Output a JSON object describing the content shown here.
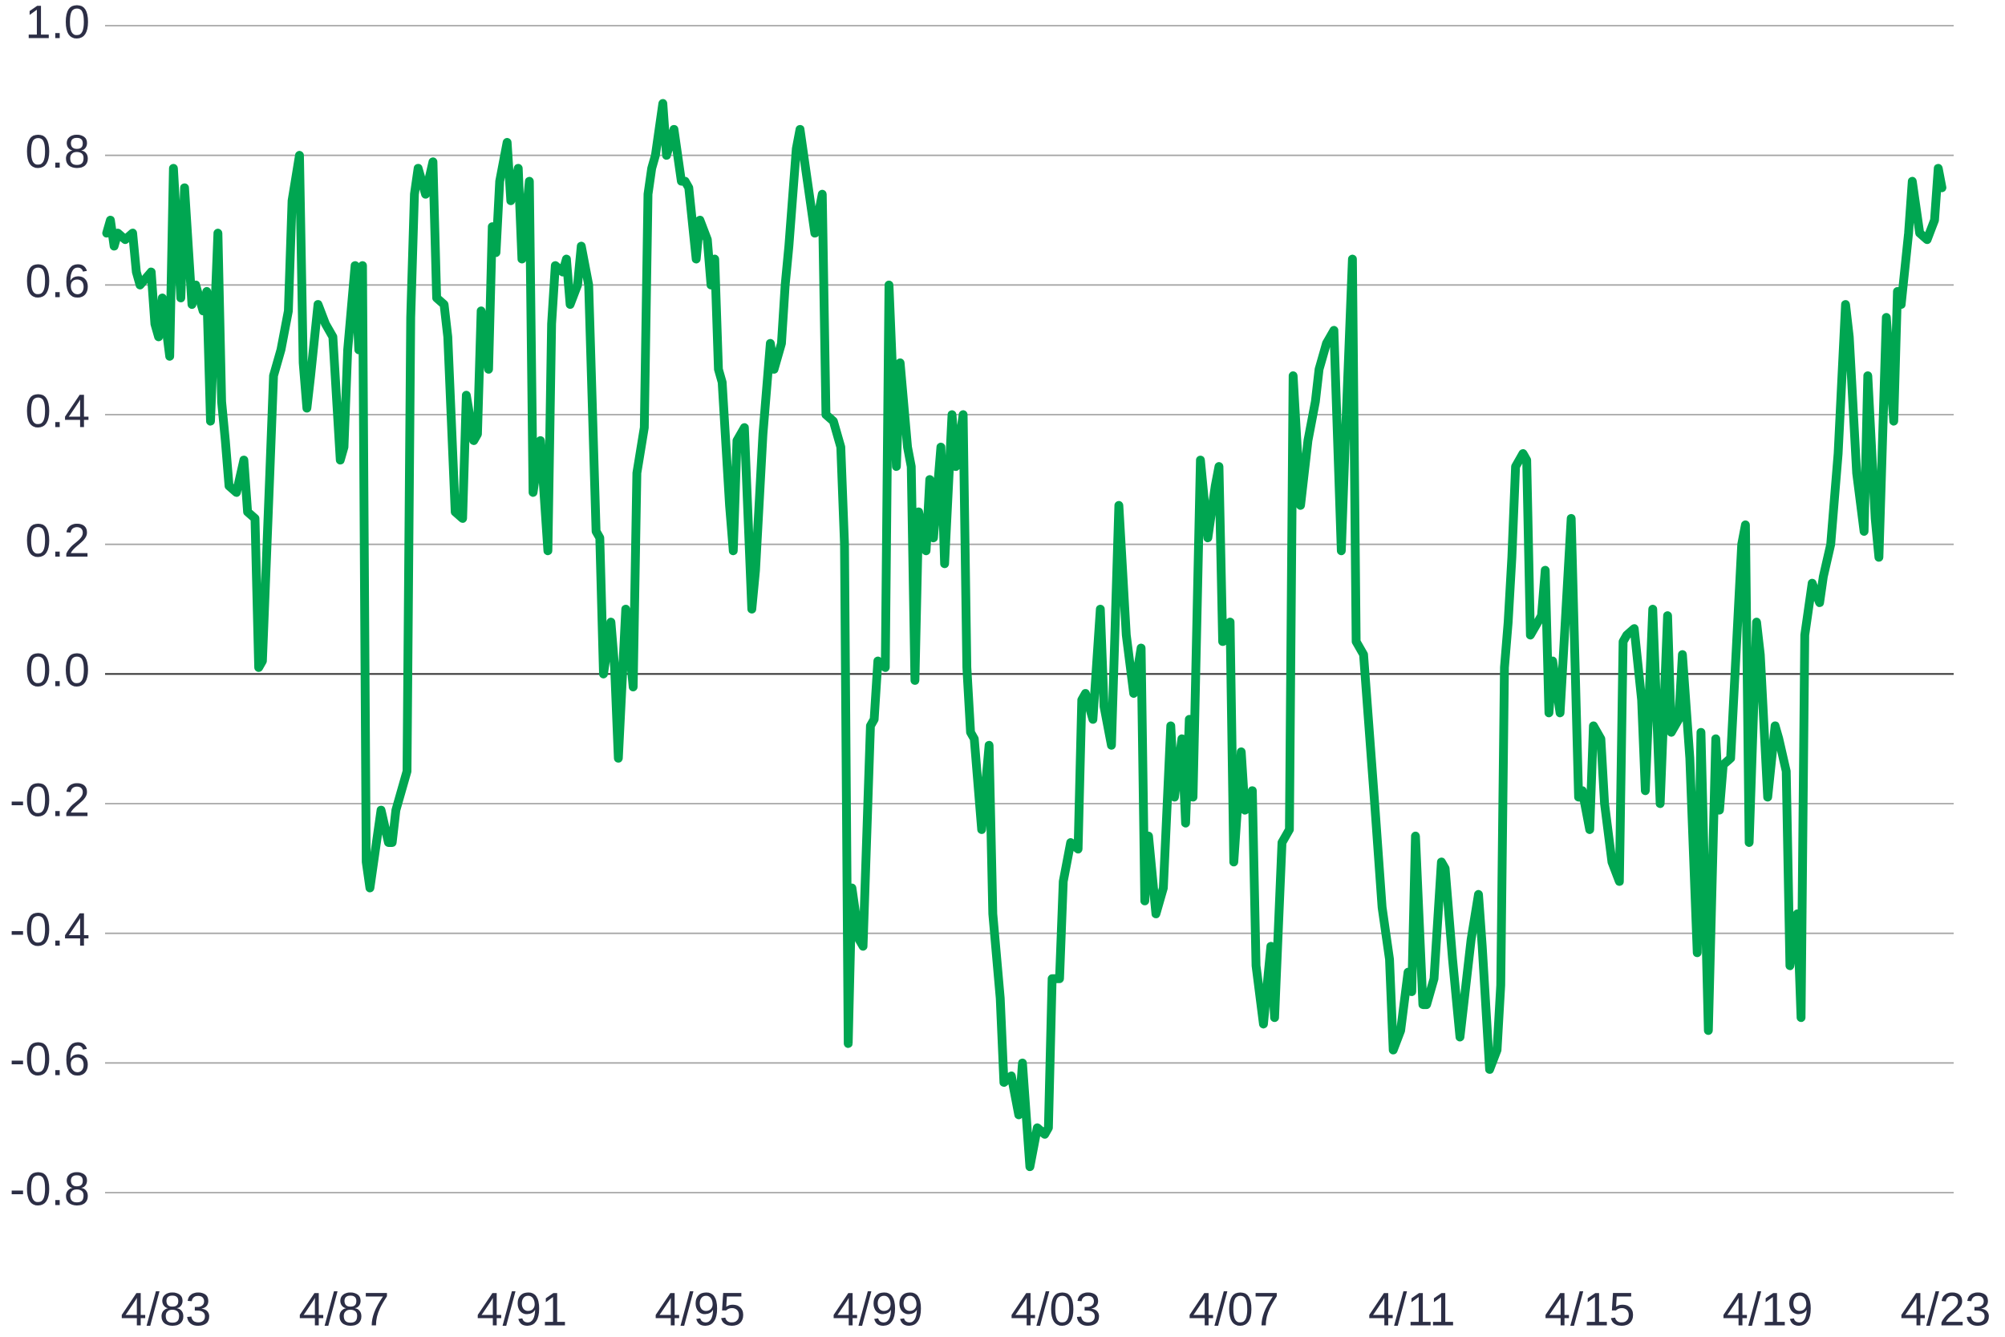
{
  "chart_data": {
    "type": "line",
    "color": "#00a651",
    "ylim": [
      -0.8,
      1.0
    ],
    "yticks": [
      {
        "value": 1.0,
        "label": "1.0"
      },
      0.8,
      0.6,
      0.4,
      0.2,
      {
        "value": 0.0,
        "label": "0.0"
      },
      -0.2,
      -0.4,
      -0.6,
      -0.8
    ],
    "grid": true,
    "xticks": [
      "4/83",
      "4/87",
      "4/91",
      "4/95",
      "4/99",
      "4/03",
      "4/07",
      "4/11",
      "4/15",
      "4/19",
      "4/23"
    ],
    "x": [
      "12/81",
      "1/82",
      "2/82",
      "3/82",
      "5/82",
      "7/82",
      "8/82",
      "9/82",
      "12/82",
      "1/83",
      "2/83",
      "3/83",
      "5/83",
      "6/83",
      "8/83",
      "9/83",
      "11/83",
      "12/83",
      "2/84",
      "3/84",
      "4/84",
      "6/84",
      "7/84",
      "8/84",
      "9/84",
      "11/84",
      "1/85",
      "2/85",
      "4/85",
      "5/85",
      "6/85",
      "8/85",
      "9/85",
      "11/85",
      "1/86",
      "2/86",
      "4/86",
      "5/86",
      "6/86",
      "7/86",
      "9/86",
      "11/86",
      "1/87",
      "3/87",
      "4/87",
      "5/87",
      "7/87",
      "8/87",
      "9/87",
      "10/87",
      "11/87",
      "1/88",
      "2/88",
      "4/88",
      "5/88",
      "6/88",
      "8/88",
      "9/88",
      "10/88",
      "11/88",
      "12/88",
      "2/89",
      "4/89",
      "5/89",
      "7/89",
      "8/89",
      "10/89",
      "12/89",
      "1/90",
      "3/90",
      "4/90",
      "5/90",
      "7/90",
      "8/90",
      "9/90",
      "10/90",
      "12/90",
      "1/91",
      "3/91",
      "4/91",
      "6/91",
      "7/91",
      "9/91",
      "11/91",
      "12/91",
      "1/92",
      "3/92",
      "4/92",
      "5/92",
      "7/92",
      "8/92",
      "10/92",
      "12/92",
      "1/93",
      "2/93",
      "4/93",
      "5/93",
      "6/93",
      "8/93",
      "10/93",
      "11/93",
      "1/94",
      "2/94",
      "3/94",
      "4/94",
      "6/94",
      "7/94",
      "9/94",
      "11/94",
      "12/94",
      "1/95",
      "3/95",
      "4/95",
      "6/95",
      "7/95",
      "8/95",
      "9/95",
      "10/95",
      "12/95",
      "1/96",
      "2/96",
      "4/96",
      "6/96",
      "7/96",
      "9/96",
      "11/96",
      "12/96",
      "2/97",
      "3/97",
      "4/97",
      "6/97",
      "7/97",
      "9/97",
      "11/97",
      "1/98",
      "2/98",
      "4/98",
      "6/98",
      "7/98",
      "8/98",
      "9/98",
      "11/98",
      "12/98",
      "2/99",
      "3/99",
      "4/99",
      "6/99",
      "7/99",
      "9/99",
      "10/99",
      "12/99",
      "1/00",
      "2/00",
      "3/00",
      "5/00",
      "6/00",
      "7/00",
      "9/00",
      "10/00",
      "12/00",
      "1/01",
      "3/01",
      "4/01",
      "5/01",
      "6/01",
      "8/01",
      "10/01",
      "11/01",
      "1/02",
      "2/02",
      "4/02",
      "6/02",
      "7/02",
      "9/02",
      "11/02",
      "1/03",
      "2/03",
      "3/03",
      "5/03",
      "6/03",
      "8/03",
      "10/03",
      "11/03",
      "12/03",
      "2/04",
      "4/04",
      "5/04",
      "7/04",
      "9/04",
      "11/04",
      "1/05",
      "3/05",
      "4/05",
      "5/05",
      "7/05",
      "9/05",
      "11/05",
      "12/05",
      "2/06",
      "3/06",
      "4/06",
      "5/06",
      "7/06",
      "9/06",
      "11/06",
      "12/06",
      "1/07",
      "3/07",
      "4/07",
      "6/07",
      "7/07",
      "9/07",
      "10/07",
      "12/07",
      "2/08",
      "3/08",
      "5/08",
      "7/08",
      "8/08",
      "10/08",
      "12/08",
      "2/09",
      "3/09",
      "5/09",
      "7/09",
      "9/09",
      "10/09",
      "12/09",
      "1/10",
      "3/10",
      "6/10",
      "8/10",
      "10/10",
      "11/10",
      "1/11",
      "3/11",
      "4/11",
      "5/11",
      "7/11",
      "8/11",
      "10/11",
      "12/11",
      "1/12",
      "3/12",
      "5/12",
      "6/12",
      "8/12",
      "10/12",
      "11/12",
      "1/13",
      "3/13",
      "4/13",
      "5/13",
      "6/13",
      "7/13",
      "8/13",
      "10/13",
      "11/13",
      "12/13",
      "2/14",
      "3/14",
      "4/14",
      "5/14",
      "6/14",
      "8/14",
      "9/14",
      "11/14",
      "1/15",
      "2/15",
      "4/15",
      "5/15",
      "7/15",
      "8/15",
      "10/15",
      "12/15",
      "1/16",
      "2/16",
      "4/16",
      "6/16",
      "7/16",
      "9/16",
      "11/16",
      "1/17",
      "2/17",
      "4/17",
      "5/17",
      "7/17",
      "9/17",
      "10/17",
      "12/17",
      "2/18",
      "3/18",
      "4/18",
      "6/18",
      "7/18",
      "9/18",
      "10/18",
      "11/18",
      "1/19",
      "2/19",
      "4/19",
      "6/19",
      "7/19",
      "9/19",
      "10/19",
      "12/19",
      "1/20",
      "2/20",
      "4/20",
      "6/20",
      "7/20",
      "9/20",
      "10/20",
      "11/20",
      "1/21",
      "2/21",
      "4/21",
      "6/21",
      "7/21",
      "9/21",
      "10/21",
      "12/21",
      "2/22",
      "3/22",
      "4/22",
      "6/22",
      "7/22",
      "9/22",
      "11/22",
      "1/23",
      "2/23",
      "3/23"
    ],
    "values": [
      0.68,
      0.7,
      0.66,
      0.68,
      0.67,
      0.68,
      0.62,
      0.6,
      0.62,
      0.54,
      0.52,
      0.58,
      0.49,
      0.78,
      0.58,
      0.75,
      0.57,
      0.6,
      0.56,
      0.59,
      0.39,
      0.68,
      0.42,
      0.36,
      0.29,
      0.28,
      0.33,
      0.25,
      0.24,
      0.01,
      0.02,
      0.31,
      0.46,
      0.5,
      0.56,
      0.73,
      0.8,
      0.48,
      0.41,
      0.46,
      0.57,
      0.54,
      0.52,
      0.33,
      0.35,
      0.5,
      0.63,
      0.5,
      0.63,
      -0.29,
      -0.33,
      -0.25,
      -0.21,
      -0.26,
      -0.26,
      -0.21,
      -0.17,
      -0.15,
      0.55,
      0.74,
      0.78,
      0.74,
      0.79,
      0.58,
      0.57,
      0.52,
      0.25,
      0.24,
      0.43,
      0.36,
      0.37,
      0.56,
      0.47,
      0.69,
      0.65,
      0.76,
      0.82,
      0.73,
      0.78,
      0.64,
      0.76,
      0.28,
      0.36,
      0.19,
      0.54,
      0.63,
      0.62,
      0.64,
      0.57,
      0.6,
      0.66,
      0.6,
      0.22,
      0.21,
      0.0,
      0.08,
      0.01,
      -0.13,
      0.1,
      -0.02,
      0.31,
      0.38,
      0.74,
      0.78,
      0.8,
      0.88,
      0.8,
      0.84,
      0.76,
      0.76,
      0.75,
      0.64,
      0.7,
      0.67,
      0.6,
      0.64,
      0.47,
      0.45,
      0.26,
      0.19,
      0.36,
      0.38,
      0.1,
      0.16,
      0.37,
      0.51,
      0.47,
      0.51,
      0.6,
      0.66,
      0.81,
      0.84,
      0.76,
      0.68,
      0.74,
      0.4,
      0.39,
      0.35,
      0.2,
      -0.57,
      -0.33,
      -0.41,
      -0.42,
      -0.08,
      -0.07,
      0.02,
      0.01,
      0.6,
      0.32,
      0.48,
      0.35,
      0.32,
      -0.01,
      0.25,
      0.19,
      0.3,
      0.21,
      0.35,
      0.17,
      0.4,
      0.32,
      0.4,
      0.01,
      -0.09,
      -0.1,
      -0.24,
      -0.11,
      -0.37,
      -0.5,
      -0.63,
      -0.62,
      -0.68,
      -0.6,
      -0.76,
      -0.7,
      -0.71,
      -0.7,
      -0.47,
      -0.47,
      -0.32,
      -0.26,
      -0.27,
      -0.04,
      -0.03,
      -0.07,
      0.1,
      -0.05,
      -0.11,
      0.26,
      0.06,
      -0.03,
      0.04,
      -0.35,
      -0.25,
      -0.37,
      -0.33,
      -0.08,
      -0.19,
      -0.1,
      -0.23,
      -0.07,
      -0.19,
      0.33,
      0.21,
      0.29,
      0.32,
      0.05,
      0.08,
      -0.29,
      -0.12,
      -0.21,
      -0.18,
      -0.45,
      -0.54,
      -0.42,
      -0.53,
      -0.26,
      -0.24,
      0.46,
      0.26,
      0.36,
      0.42,
      0.47,
      0.51,
      0.53,
      0.19,
      0.35,
      0.64,
      0.05,
      0.03,
      -0.2,
      -0.36,
      -0.44,
      -0.58,
      -0.55,
      -0.46,
      -0.49,
      -0.25,
      -0.51,
      -0.51,
      -0.47,
      -0.29,
      -0.3,
      -0.44,
      -0.56,
      -0.51,
      -0.41,
      -0.34,
      -0.42,
      -0.61,
      -0.58,
      -0.48,
      0.01,
      0.08,
      0.18,
      0.32,
      0.34,
      0.33,
      0.06,
      0.08,
      0.09,
      0.16,
      -0.06,
      0.02,
      -0.06,
      0.04,
      0.24,
      -0.19,
      -0.18,
      -0.24,
      -0.08,
      -0.1,
      -0.2,
      -0.29,
      -0.32,
      0.05,
      0.06,
      0.07,
      -0.04,
      -0.18,
      0.1,
      -0.2,
      0.09,
      -0.09,
      -0.07,
      0.03,
      -0.13,
      -0.43,
      -0.09,
      -0.55,
      -0.1,
      -0.21,
      -0.14,
      -0.13,
      -0.02,
      0.2,
      0.23,
      -0.26,
      0.08,
      0.03,
      -0.19,
      -0.08,
      -0.1,
      -0.15,
      -0.45,
      -0.37,
      -0.53,
      0.06,
      0.14,
      0.11,
      0.15,
      0.2,
      0.27,
      0.34,
      0.57,
      0.52,
      0.31,
      0.22,
      0.46,
      0.24,
      0.18,
      0.55,
      0.39,
      0.59,
      0.57,
      0.68,
      0.76,
      0.68,
      0.67,
      0.7,
      0.78,
      0.75
    ]
  }
}
